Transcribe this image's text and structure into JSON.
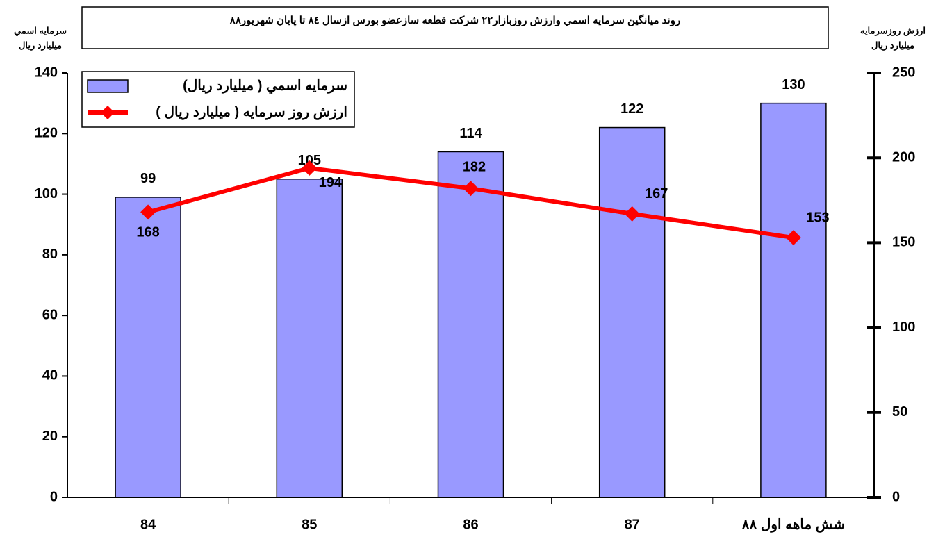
{
  "chart_data": {
    "type": "bar_line",
    "title": "روند ميانگين سرمايه اسمي وارزش روزبازار۲۲ شرکت قطعه سازعضو بورس ازسال ۸٤ تا پايان شهريور۸۸",
    "y_label": [
      "سرمايه اسمي",
      "ميليارد ريال"
    ],
    "y2_label": [
      "ارزش روزسرمايه",
      "ميليارد ريال"
    ],
    "categories": [
      "84",
      "85",
      "86",
      "87",
      "شش ماهه اول ۸۸"
    ],
    "series": [
      {
        "name": "سرمايه اسمي ( ميليارد ريال)",
        "color": "#9999ff",
        "kind": "bar",
        "values": [
          99,
          105,
          114,
          122,
          130
        ]
      },
      {
        "name": "ارزش روز سرمايه ( ميليارد ريال )",
        "color": "#ff0000",
        "kind": "line",
        "axis": "y2",
        "values": [
          168,
          194,
          182,
          167,
          153
        ]
      }
    ],
    "ylim": [
      0,
      140
    ],
    "yticks": [
      0,
      20,
      40,
      60,
      80,
      100,
      120,
      140
    ],
    "y2lim": [
      0,
      250
    ],
    "y2ticks": [
      0,
      50,
      100,
      150,
      200,
      250
    ],
    "legend": "top-left",
    "grid": false
  }
}
